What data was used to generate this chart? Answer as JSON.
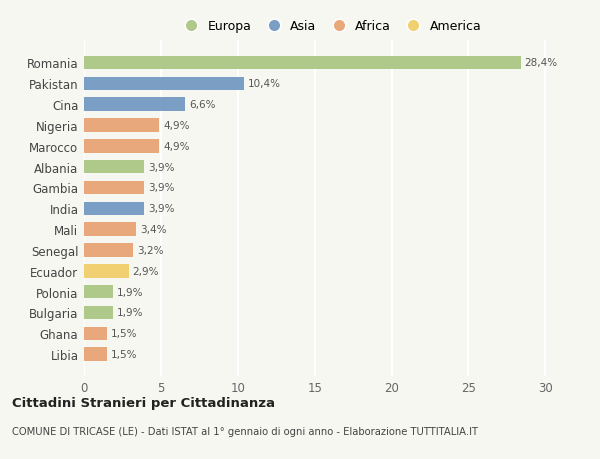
{
  "countries": [
    "Romania",
    "Pakistan",
    "Cina",
    "Nigeria",
    "Marocco",
    "Albania",
    "Gambia",
    "India",
    "Mali",
    "Senegal",
    "Ecuador",
    "Polonia",
    "Bulgaria",
    "Ghana",
    "Libia"
  ],
  "values": [
    28.4,
    10.4,
    6.6,
    4.9,
    4.9,
    3.9,
    3.9,
    3.9,
    3.4,
    3.2,
    2.9,
    1.9,
    1.9,
    1.5,
    1.5
  ],
  "labels": [
    "28,4%",
    "10,4%",
    "6,6%",
    "4,9%",
    "4,9%",
    "3,9%",
    "3,9%",
    "3,9%",
    "3,4%",
    "3,2%",
    "2,9%",
    "1,9%",
    "1,9%",
    "1,5%",
    "1,5%"
  ],
  "continents": [
    "Europa",
    "Asia",
    "Asia",
    "Africa",
    "Africa",
    "Europa",
    "Africa",
    "Asia",
    "Africa",
    "Africa",
    "America",
    "Europa",
    "Europa",
    "Africa",
    "Africa"
  ],
  "colors": {
    "Europa": "#aec98a",
    "Asia": "#7b9ec5",
    "Africa": "#e8a87c",
    "America": "#f0d070"
  },
  "xlim": [
    0,
    32
  ],
  "xticks": [
    0,
    5,
    10,
    15,
    20,
    25,
    30
  ],
  "background_color": "#f7f7f2",
  "title": "Cittadini Stranieri per Cittadinanza",
  "subtitle": "COMUNE DI TRICASE (LE) - Dati ISTAT al 1° gennaio di ogni anno - Elaborazione TUTTITALIA.IT",
  "grid_color": "#ffffff",
  "legend_order": [
    "Europa",
    "Asia",
    "Africa",
    "America"
  ]
}
